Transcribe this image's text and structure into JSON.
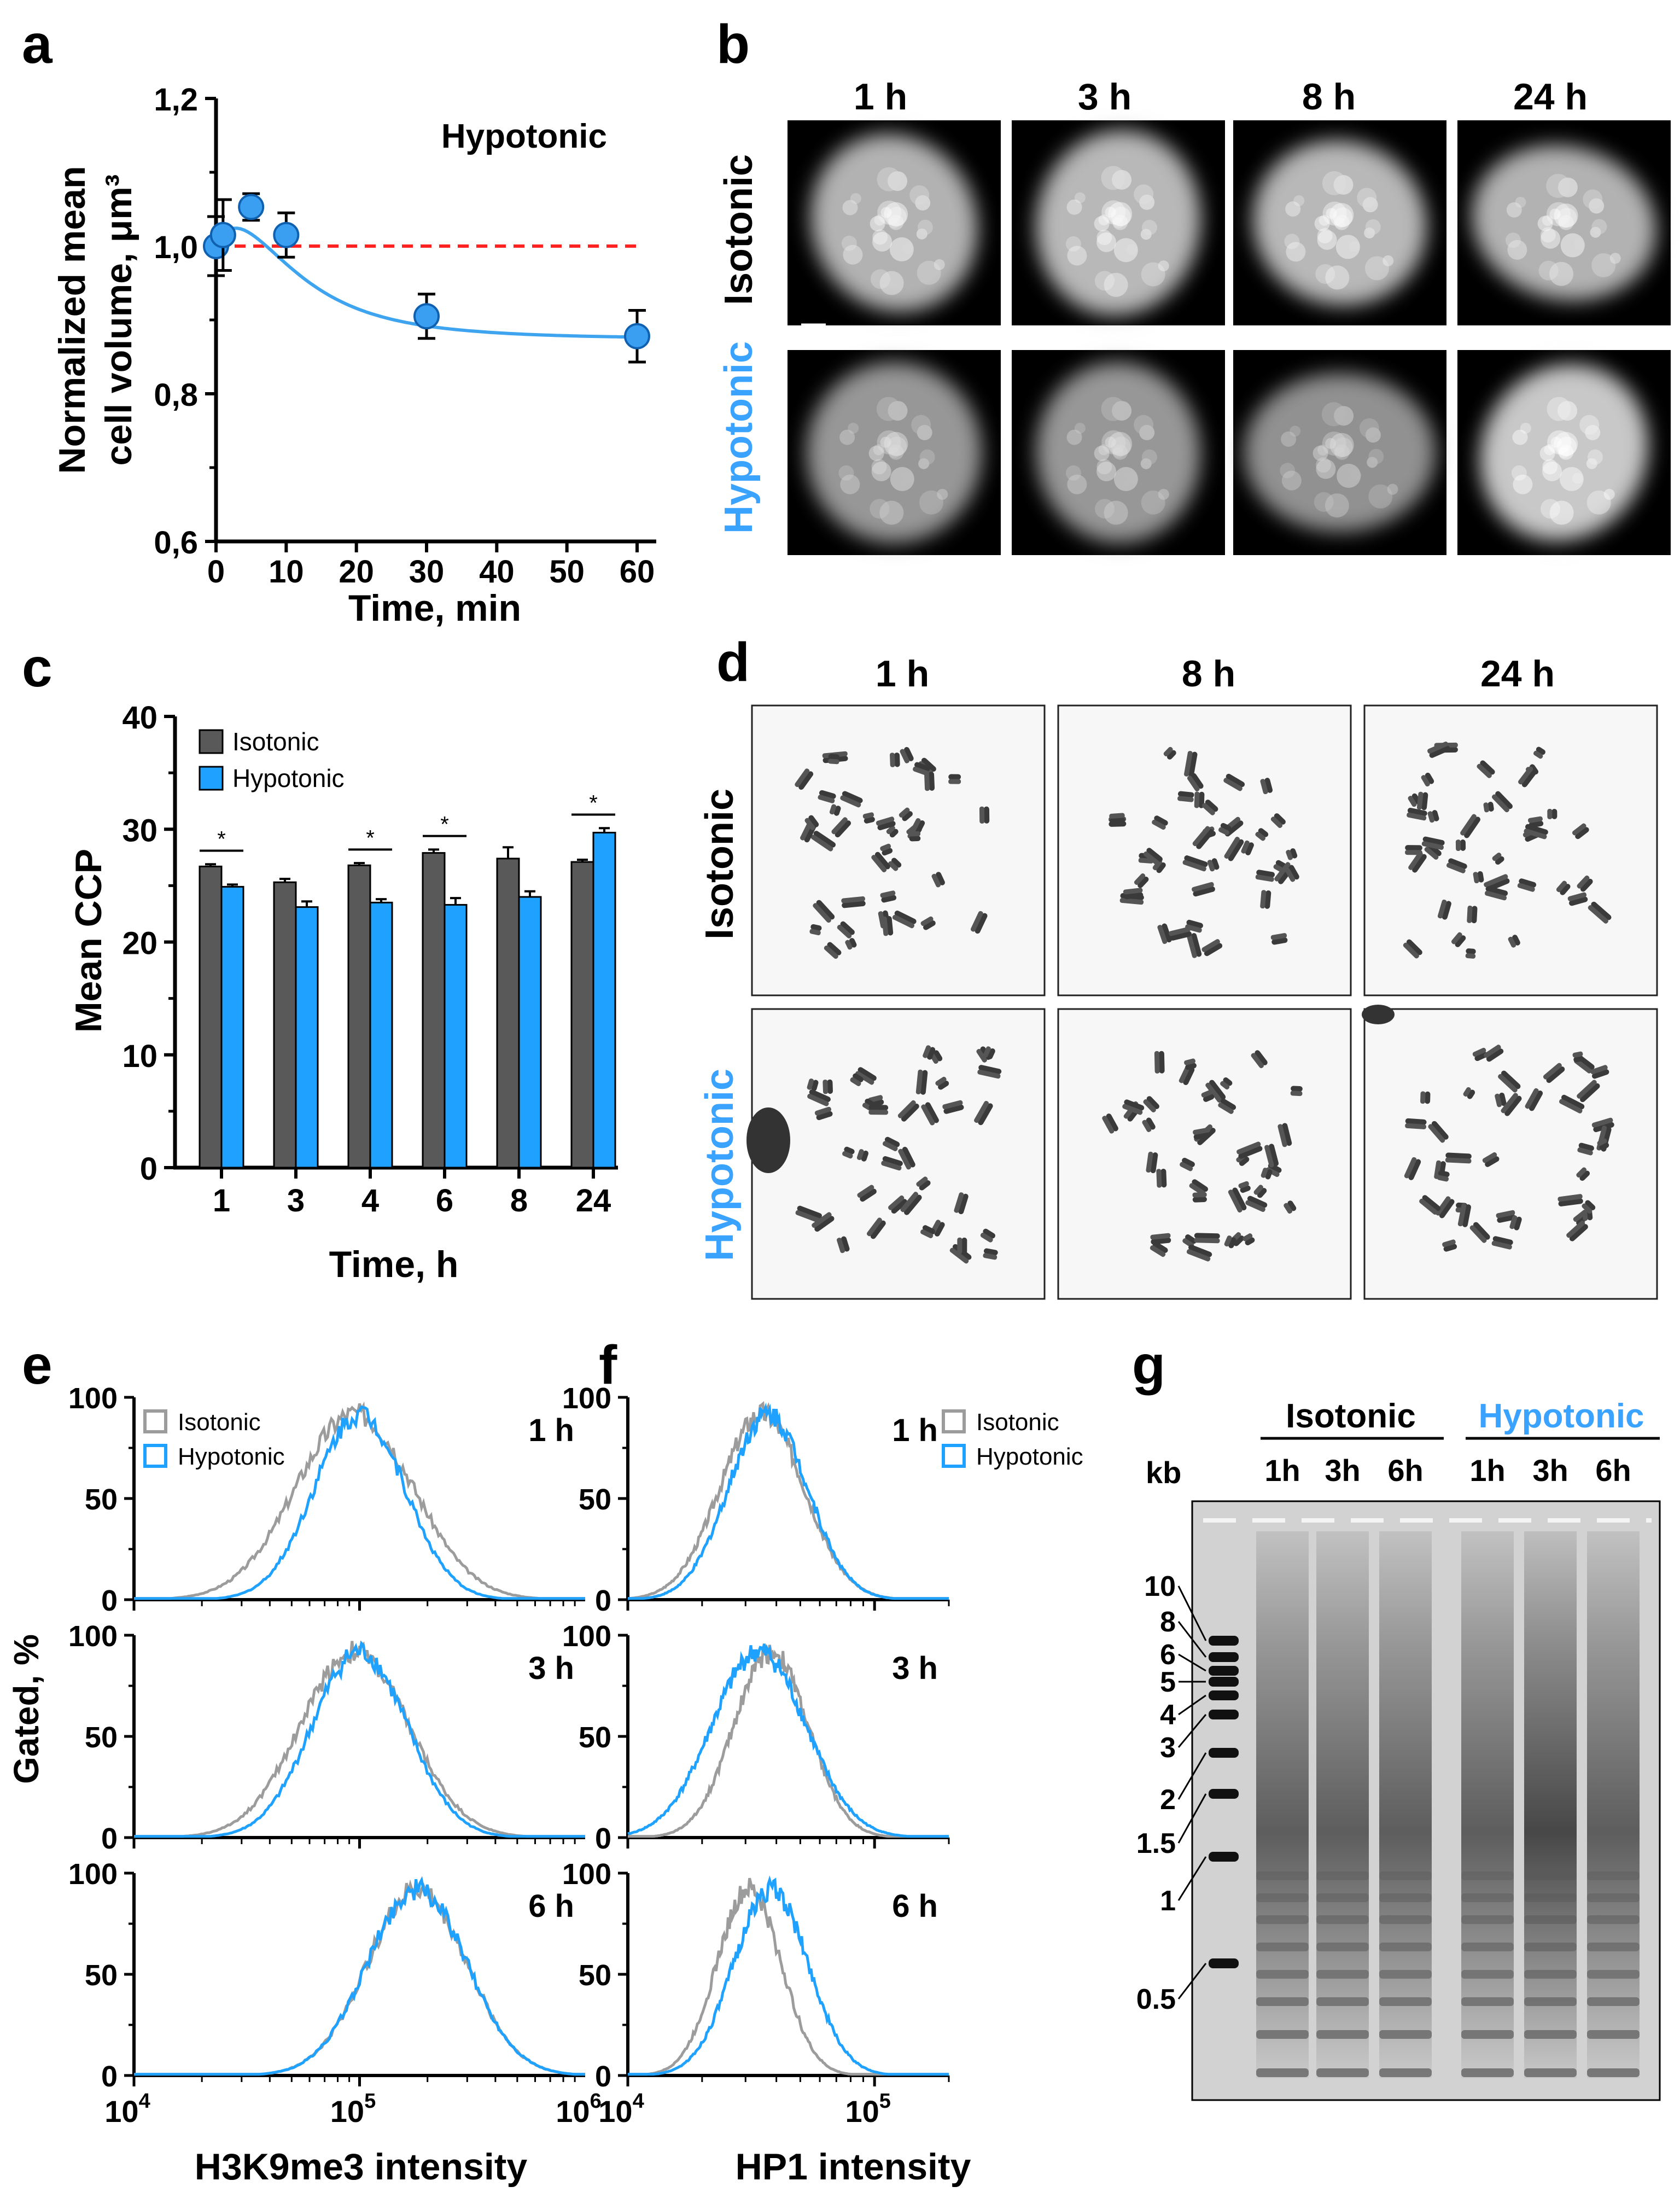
{
  "colors": {
    "iso": "#595959",
    "hypo": "#1fa2ff",
    "isoLine": "#9c9c9c",
    "fit": "#3ea4f0",
    "ref": "#ff2020",
    "text": "#000000"
  },
  "panels": {
    "a": "a",
    "b": "b",
    "c": "c",
    "d": "d",
    "e": "e",
    "f": "f",
    "g": "g"
  },
  "panel_a": {
    "label": "Hypotonic",
    "ylabel_line1": "Normalized mean",
    "ylabel_line2": "cell volume, μm³",
    "xlabel": "Time, min"
  },
  "panel_b": {
    "times": [
      "1 h",
      "3 h",
      "8 h",
      "24 h"
    ],
    "rows": [
      "Isotonic",
      "Hypotonic"
    ]
  },
  "panel_c": {
    "legend_iso": "Isotonic",
    "legend_hypo": "Hypotonic",
    "star": "*"
  },
  "panel_d": {
    "times": [
      "1 h",
      "8 h",
      "24 h"
    ],
    "rows": [
      "Isotonic",
      "Hypotonic"
    ]
  },
  "panel_e": {
    "legend_iso": "Isotonic",
    "legend_hypo": "Hypotonic",
    "times": [
      "1 h",
      "3 h",
      "6 h"
    ],
    "xlabel": "H3K9me3 intensity",
    "ylabel": "Gated, %"
  },
  "panel_f": {
    "legend_iso": "Isotonic",
    "legend_hypo": "Hypotonic",
    "times": [
      "1 h",
      "3 h",
      "6 h"
    ],
    "xlabel": "HP1 intensity"
  },
  "panel_g": {
    "group_iso": "Isotonic",
    "group_hypo": "Hypotonic",
    "lanes": [
      "1h",
      "3h",
      "6h",
      "1h",
      "3h",
      "6h"
    ],
    "kb": "kb",
    "ladder": [
      "10",
      "8",
      "6",
      "5",
      "4",
      "3",
      "2",
      "1.5",
      "1",
      "0.5"
    ]
  },
  "chart_data": [
    {
      "type": "scatter",
      "panel": "a",
      "title": "Hypotonic",
      "xlabel": "Time, min",
      "ylabel": "Normalized mean cell volume, μm³",
      "x": [
        0,
        1,
        5,
        10,
        30,
        60
      ],
      "y": [
        1.0,
        1.015,
        1.053,
        1.015,
        0.905,
        0.878
      ],
      "err": [
        0.04,
        0.048,
        0.018,
        0.03,
        0.03,
        0.035
      ],
      "reference_y": 1.0,
      "xlim": [
        0,
        60
      ],
      "ylim": [
        0.6,
        1.2
      ],
      "xticks": [
        "0",
        "10",
        "20",
        "30",
        "40",
        "50",
        "60"
      ],
      "yticks": [
        "0,6",
        "0,8",
        "1,0",
        "1,2"
      ]
    },
    {
      "type": "bar",
      "panel": "c",
      "categories": [
        "1",
        "3",
        "4",
        "6",
        "8",
        "24"
      ],
      "xlabel": "Time, h",
      "ylabel": "Mean CCP",
      "ylim": [
        0,
        40
      ],
      "yticks": [
        "0",
        "10",
        "20",
        "30",
        "40"
      ],
      "series": [
        {
          "name": "Isotonic",
          "values": [
            26.7,
            25.3,
            26.8,
            27.9,
            27.4,
            27.1
          ],
          "err": [
            0.2,
            0.3,
            0.2,
            0.3,
            1.0,
            0.2
          ]
        },
        {
          "name": "Hypotonic",
          "values": [
            24.9,
            23.1,
            23.5,
            23.3,
            24.0,
            29.7
          ],
          "err": [
            0.2,
            0.5,
            0.3,
            0.6,
            0.5,
            0.4
          ]
        }
      ],
      "significant": [
        "1",
        "4",
        "6",
        "24"
      ]
    },
    {
      "type": "line",
      "panel": "e",
      "xlabel": "H3K9me3 intensity",
      "ylabel": "Gated, %",
      "xscale": "log",
      "xlim": [
        10000,
        1000000
      ],
      "ylim": [
        0,
        100
      ],
      "xticks": [
        "10^4",
        "10^5",
        "10^6"
      ],
      "yticks": [
        "0",
        "50",
        "100"
      ],
      "subplots": [
        {
          "time": "1 h",
          "series": [
            {
              "name": "Isotonic",
              "peak": 95000,
              "width": 0.26
            },
            {
              "name": "Hypotonic",
              "peak": 100000,
              "width": 0.2
            }
          ]
        },
        {
          "time": "3 h",
          "series": [
            {
              "name": "Isotonic",
              "peak": 95000,
              "width": 0.24
            },
            {
              "name": "Hypotonic",
              "peak": 100000,
              "width": 0.21
            }
          ]
        },
        {
          "time": "6 h",
          "series": [
            {
              "name": "Isotonic",
              "peak": 180000,
              "width": 0.22
            },
            {
              "name": "Hypotonic",
              "peak": 180000,
              "width": 0.22
            }
          ]
        }
      ]
    },
    {
      "type": "line",
      "panel": "f",
      "xlabel": "HP1 intensity",
      "ylabel": "Gated, %",
      "xscale": "log",
      "xlim": [
        10000,
        200000
      ],
      "ylim": [
        0,
        100
      ],
      "xticks": [
        "10^4",
        "10^5"
      ],
      "yticks": [
        "0",
        "50",
        "100"
      ],
      "subplots": [
        {
          "time": "1 h",
          "series": [
            {
              "name": "Isotonic",
              "peak": 35000,
              "width": 0.17
            },
            {
              "name": "Hypotonic",
              "peak": 37000,
              "width": 0.16
            }
          ]
        },
        {
          "time": "3 h",
          "series": [
            {
              "name": "Isotonic",
              "peak": 38000,
              "width": 0.15
            },
            {
              "name": "Hypotonic",
              "peak": 34000,
              "width": 0.19
            }
          ]
        },
        {
          "time": "6 h",
          "series": [
            {
              "name": "Isotonic",
              "peak": 31000,
              "width": 0.13
            },
            {
              "name": "Hypotonic",
              "peak": 38000,
              "width": 0.15
            }
          ]
        }
      ]
    }
  ]
}
